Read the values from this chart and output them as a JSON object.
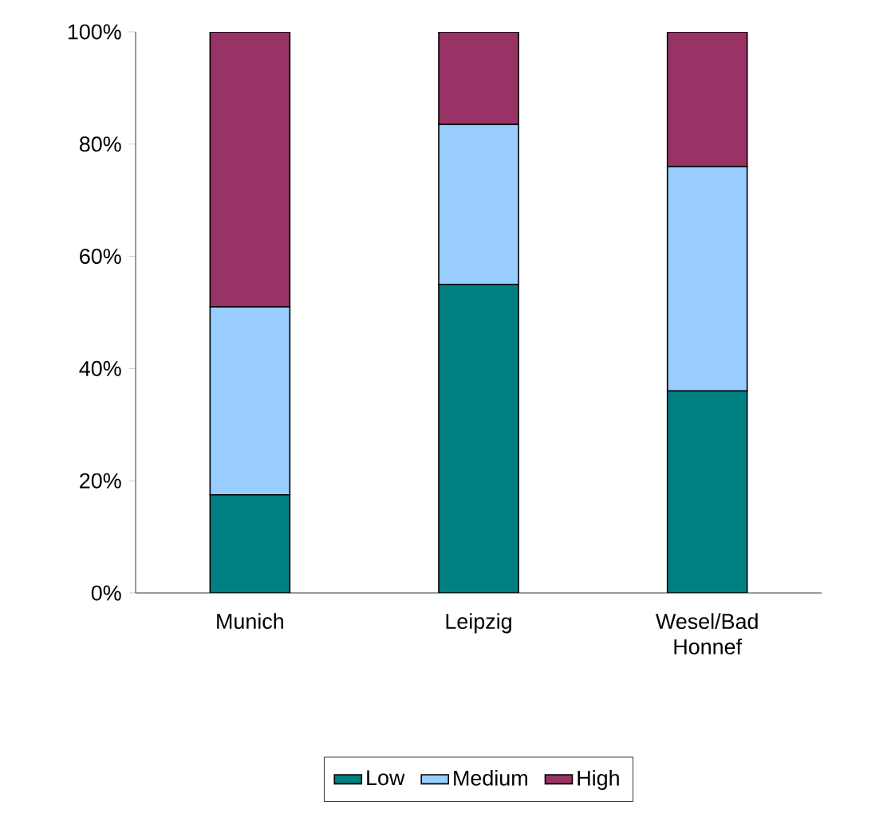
{
  "chart_data": {
    "type": "bar",
    "stacked": true,
    "categories": [
      "Munich",
      "Leipzig",
      "Wesel/Bad Honnef"
    ],
    "series": [
      {
        "name": "Low",
        "color": "#008080",
        "values": [
          17.5,
          55,
          36
        ]
      },
      {
        "name": "Medium",
        "color": "#99ccff",
        "values": [
          33.5,
          28.5,
          40
        ]
      },
      {
        "name": "High",
        "color": "#993366",
        "values": [
          49,
          16.5,
          24
        ]
      }
    ],
    "ylim": [
      0,
      100
    ],
    "yticks": [
      {
        "value": 0,
        "label": "0%"
      },
      {
        "value": 20,
        "label": "20%"
      },
      {
        "value": 40,
        "label": "40%"
      },
      {
        "value": 60,
        "label": "60%"
      },
      {
        "value": 80,
        "label": "80%"
      },
      {
        "value": 100,
        "label": "100%"
      }
    ],
    "legend": "bottom"
  }
}
